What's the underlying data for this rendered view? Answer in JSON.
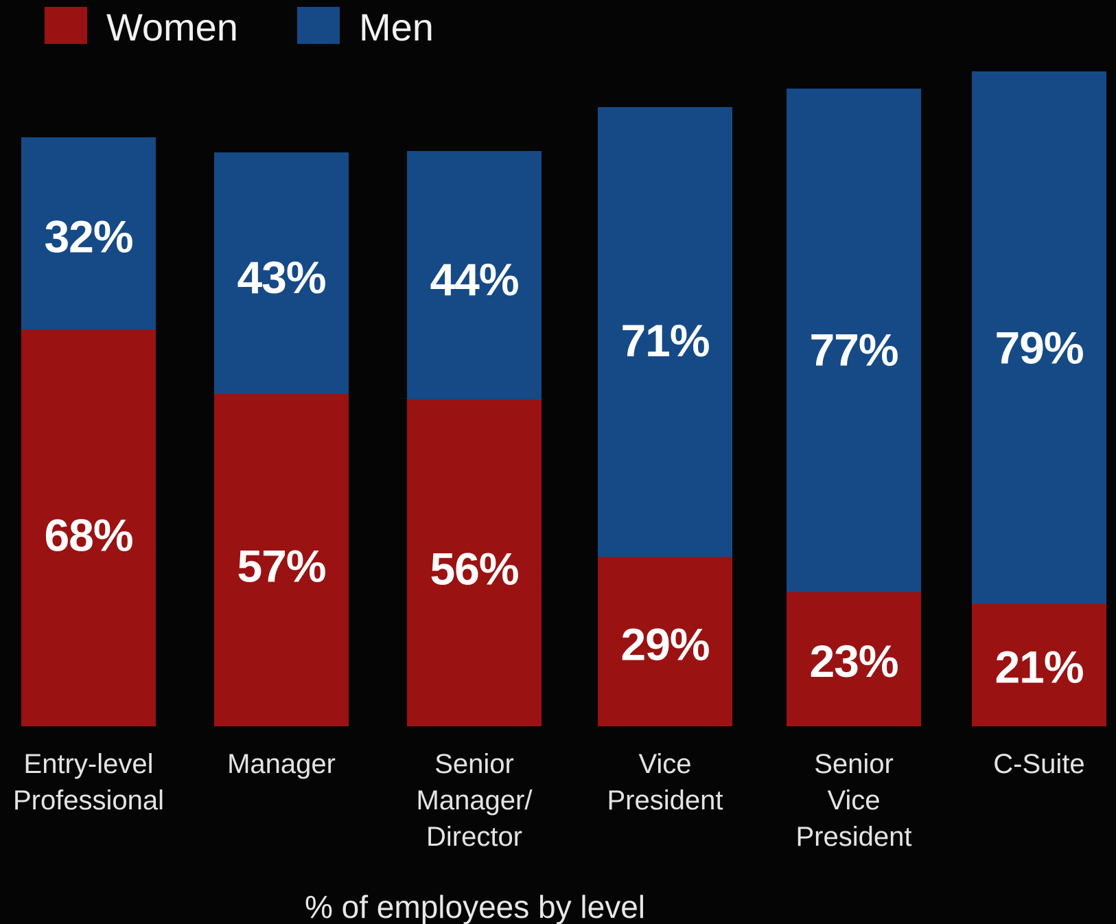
{
  "chart_data": {
    "type": "bar",
    "stacked": true,
    "categories": [
      [
        "Entry-level",
        "Professional"
      ],
      [
        "Manager"
      ],
      [
        "Senior",
        "Manager/",
        "Director"
      ],
      [
        "Vice",
        "President"
      ],
      [
        "Senior",
        "Vice",
        "President"
      ],
      [
        "C-Suite"
      ]
    ],
    "series": [
      {
        "name": "Women",
        "color": "#9b1212",
        "values": [
          68,
          57,
          56,
          29,
          23,
          21
        ]
      },
      {
        "name": "Men",
        "color": "#154a86",
        "values": [
          32,
          43,
          44,
          71,
          77,
          79
        ]
      }
    ],
    "value_suffix": "%",
    "xlabel": "% of employees by level",
    "legend_position": "top-left",
    "grid": false
  }
}
